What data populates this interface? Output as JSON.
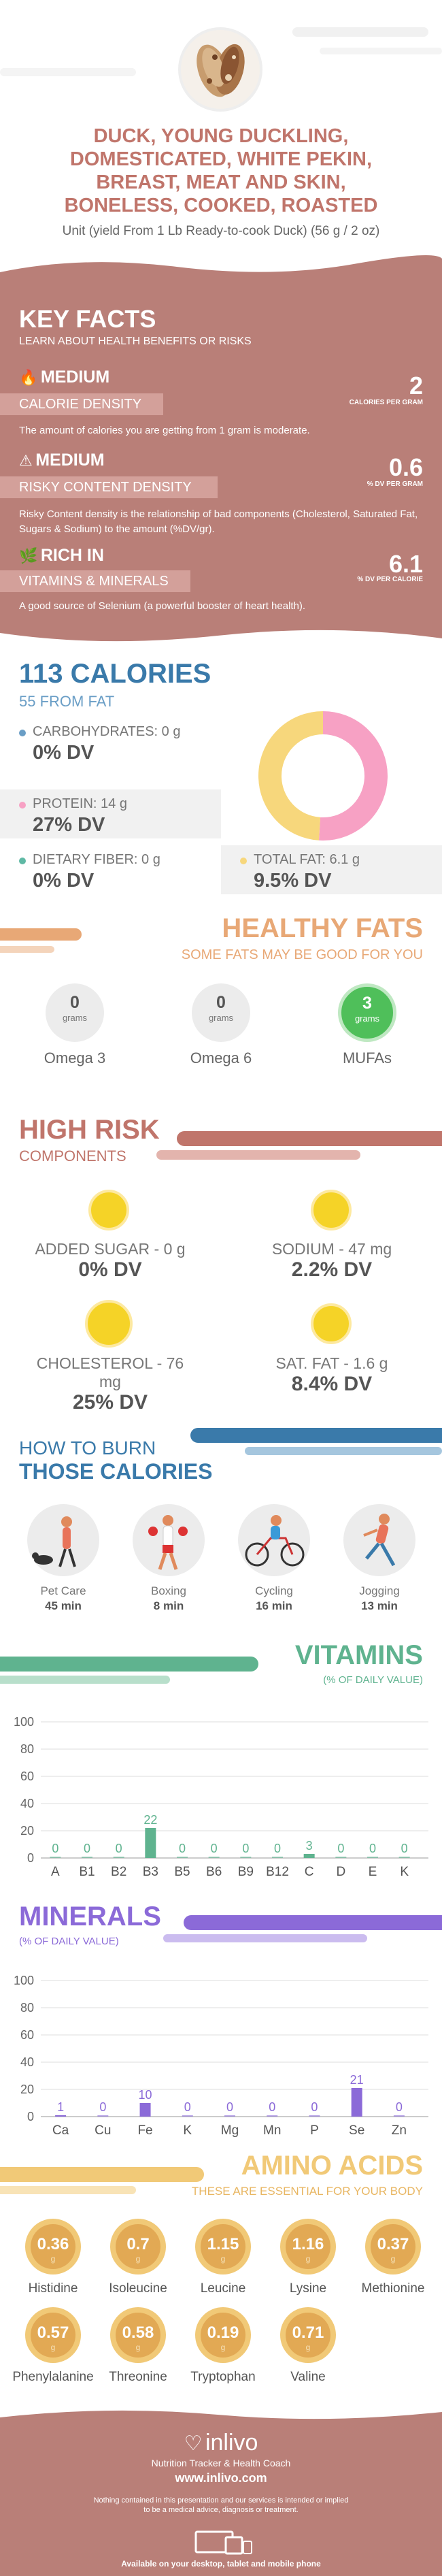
{
  "header": {
    "title_lines": [
      "DUCK, YOUNG DUCKLING,",
      "DOMESTICATED, WHITE PEKIN,",
      "BREAST, MEAT AND SKIN,",
      "BONELESS, COOKED, ROASTED"
    ],
    "subtitle": "Unit (yield From 1 Lb Ready-to-cook Duck) (56 g / 2 oz)"
  },
  "key_facts": {
    "title": "KEY FACTS",
    "subtitle": "LEARN ABOUT HEALTH BENEFITS OR RISKS",
    "items": [
      {
        "level": "MEDIUM",
        "label": "CALORIE DENSITY",
        "value": "2",
        "unit": "CALORIES PER GRAM",
        "desc": "The amount of calories you are getting from 1 gram is moderate."
      },
      {
        "level": "MEDIUM",
        "label": "RISKY CONTENT DENSITY",
        "value": "0.6",
        "unit": "% DV PER GRAM",
        "desc": "Risky Content density is the relationship of bad components (Cholesterol, Saturated Fat, Sugars & Sodium) to the amount (%DV/gr)."
      },
      {
        "level": "RICH  IN",
        "label": "VITAMINS & MINERALS",
        "value": "6.1",
        "unit": "% DV PER CALORIE",
        "desc": "A good source of Selenium (a powerful booster of heart health)."
      }
    ]
  },
  "calories": {
    "title": "113 CALORIES",
    "from_fat": "55 FROM FAT",
    "carbs_label": "CARBOHYDRATES: 0 g",
    "carbs_dv": "0% DV",
    "protein_label": "PROTEIN: 14 g",
    "protein_dv": "27% DV",
    "fiber_label": "DIETARY FIBER: 0 g",
    "fiber_dv": "0% DV",
    "fat_label": "TOTAL FAT: 6.1 g",
    "fat_dv": "9.5% DV",
    "donut": {
      "protein_fraction": 0.51,
      "fat_fraction": 0.49
    },
    "colors": {
      "carbs": "#6a9ec6",
      "protein": "#f7a1c4",
      "fiber": "#5fb9a5",
      "fat": "#f7d77c"
    }
  },
  "healthy_fats": {
    "title": "HEALTHY FATS",
    "subtitle": "SOME FATS MAY BE GOOD FOR YOU",
    "items": [
      {
        "value": "0",
        "unit": "grams",
        "label": "Omega 3"
      },
      {
        "value": "0",
        "unit": "grams",
        "label": "Omega 6"
      },
      {
        "value": "3",
        "unit": "grams",
        "label": "MUFAs"
      }
    ]
  },
  "high_risk": {
    "title": "HIGH RISK",
    "subtitle": "COMPONENTS",
    "items": [
      {
        "label": "ADDED SUGAR - 0 g",
        "dv": "0% DV"
      },
      {
        "label": "SODIUM - 47 mg",
        "dv": "2.2% DV"
      },
      {
        "label": "CHOLESTEROL - 76 mg",
        "dv": "25% DV"
      },
      {
        "label": "SAT. FAT - 1.6 g",
        "dv": "8.4% DV"
      }
    ]
  },
  "burn": {
    "title1": "HOW TO BURN",
    "title2": "THOSE CALORIES",
    "items": [
      {
        "label": "Pet Care",
        "minutes": "45 min"
      },
      {
        "label": "Boxing",
        "minutes": "8 min"
      },
      {
        "label": "Cycling",
        "minutes": "16 min"
      },
      {
        "label": "Jogging",
        "minutes": "13 min"
      }
    ]
  },
  "vitamins": {
    "title": "VITAMINS",
    "subtitle": "(% OF DAILY VALUE)"
  },
  "minerals": {
    "title": "MINERALS",
    "subtitle": "(% OF DAILY VALUE)"
  },
  "chart_data": [
    {
      "type": "bar",
      "title": "VITAMINS",
      "ylim": [
        0,
        100
      ],
      "yticks": [
        0,
        20,
        40,
        60,
        80,
        100
      ],
      "categories": [
        "A",
        "B1",
        "B2",
        "B3",
        "B5",
        "B6",
        "B9",
        "B12",
        "C",
        "D",
        "E",
        "K"
      ],
      "values": [
        0,
        0,
        0,
        22,
        0,
        0,
        0,
        0,
        3,
        0,
        0,
        0
      ],
      "color": "#5fb38f"
    },
    {
      "type": "bar",
      "title": "MINERALS",
      "ylim": [
        0,
        100
      ],
      "yticks": [
        0,
        20,
        40,
        60,
        80,
        100
      ],
      "categories": [
        "Ca",
        "Cu",
        "Fe",
        "K",
        "Mg",
        "Mn",
        "P",
        "Se",
        "Zn"
      ],
      "values": [
        1,
        0,
        10,
        0,
        0,
        0,
        0,
        21,
        0
      ],
      "color": "#8b6ad8"
    }
  ],
  "amino": {
    "title": "AMINO ACIDS",
    "subtitle": "THESE ARE ESSENTIAL FOR YOUR BODY",
    "unit": "g",
    "items": [
      {
        "value": "0.36",
        "label": "Histidine"
      },
      {
        "value": "0.7",
        "label": "Isoleucine"
      },
      {
        "value": "1.15",
        "label": "Leucine"
      },
      {
        "value": "1.16",
        "label": "Lysine"
      },
      {
        "value": "0.37",
        "label": "Methionine"
      },
      {
        "value": "0.57",
        "label": "Phenylalanine"
      },
      {
        "value": "0.58",
        "label": "Threonine"
      },
      {
        "value": "0.19",
        "label": "Tryptophan"
      },
      {
        "value": "0.71",
        "label": "Valine"
      }
    ]
  },
  "footer": {
    "brand": "inlivo",
    "tagline": "Nutrition Tracker & Health Coach",
    "url": "www.inlivo.com",
    "disclaimer1": "Nothing contained in this presentation and our services is intended or implied",
    "disclaimer2": "to be a medical advice, diagnosis or treatment.",
    "devices": "Available on your desktop, tablet and mobile phone"
  }
}
